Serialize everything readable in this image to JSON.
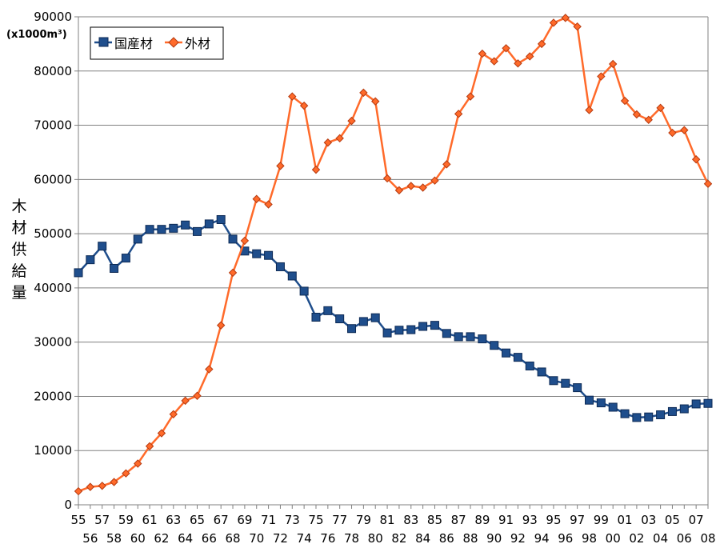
{
  "chart_data": {
    "type": "line",
    "ylabel": "木材供給量",
    "y_unit": "(x1000m³)",
    "ylim": [
      0,
      90000
    ],
    "y_ticks": [
      "0",
      "10000",
      "20000",
      "30000",
      "40000",
      "50000",
      "60000",
      "70000",
      "80000",
      "90000"
    ],
    "grid": true,
    "legend_position": "top-left",
    "x": [
      "55",
      "56",
      "57",
      "58",
      "59",
      "60",
      "61",
      "62",
      "63",
      "64",
      "65",
      "66",
      "67",
      "68",
      "69",
      "70",
      "71",
      "72",
      "73",
      "74",
      "75",
      "76",
      "77",
      "78",
      "79",
      "80",
      "81",
      "82",
      "83",
      "84",
      "85",
      "86",
      "87",
      "88",
      "89",
      "90",
      "91",
      "92",
      "93",
      "94",
      "95",
      "96",
      "97",
      "98",
      "99",
      "00",
      "01",
      "02",
      "03",
      "04",
      "05",
      "06",
      "07",
      "08"
    ],
    "series": [
      {
        "name": "国産材",
        "color": "#1f4e8c",
        "marker": "square",
        "values": [
          42800,
          45200,
          47700,
          43600,
          45500,
          49000,
          50800,
          50800,
          51000,
          51600,
          50400,
          51800,
          52600,
          49000,
          46800,
          46300,
          46000,
          43900,
          42200,
          39400,
          34600,
          35800,
          34300,
          32500,
          33800,
          34500,
          31700,
          32200,
          32300,
          32900,
          33100,
          31600,
          31000,
          31000,
          30600,
          29400,
          28000,
          27200,
          25600,
          24500,
          22900,
          22400,
          21600,
          19300,
          18800,
          18000,
          16800,
          16100,
          16200,
          16600,
          17200,
          17700,
          18600,
          18700
        ]
      },
      {
        "name": "外材",
        "color": "#ff6a2a",
        "marker": "diamond",
        "values": [
          2500,
          3300,
          3500,
          4200,
          5800,
          7600,
          10800,
          13200,
          16700,
          19200,
          20100,
          25000,
          33100,
          42800,
          48700,
          56400,
          55400,
          62500,
          75300,
          73600,
          61800,
          66800,
          67600,
          70800,
          76000,
          74400,
          60200,
          58000,
          58800,
          58500,
          59800,
          62800,
          72100,
          75300,
          83200,
          81800,
          84200,
          81400,
          82700,
          85000,
          88900,
          89800,
          88200,
          72800,
          79000,
          81300,
          74500,
          72000,
          71000,
          73200,
          68600,
          69100,
          63700,
          59200
        ]
      }
    ]
  }
}
